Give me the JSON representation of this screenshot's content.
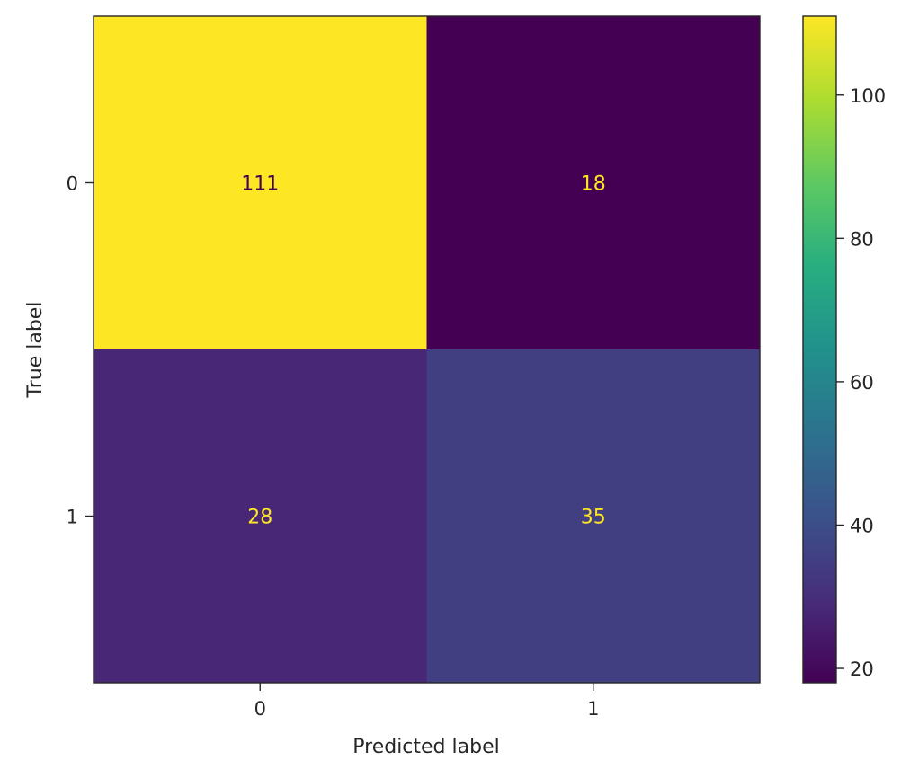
{
  "chart_data": {
    "type": "heatmap",
    "title": "",
    "xlabel": "Predicted label",
    "ylabel": "True label",
    "x_categories": [
      "0",
      "1"
    ],
    "y_categories": [
      "0",
      "1"
    ],
    "values": [
      [
        111,
        18
      ],
      [
        28,
        35
      ]
    ],
    "colormap": "viridis",
    "colorbar": {
      "range": [
        18,
        111
      ],
      "ticks": [
        20,
        40,
        60,
        80,
        100
      ],
      "tick_labels": [
        "20",
        "40",
        "60",
        "80",
        "100"
      ]
    },
    "cell_text_colors": {
      "light_background": "#440154",
      "dark_background": "#fde725"
    },
    "grid": false
  }
}
